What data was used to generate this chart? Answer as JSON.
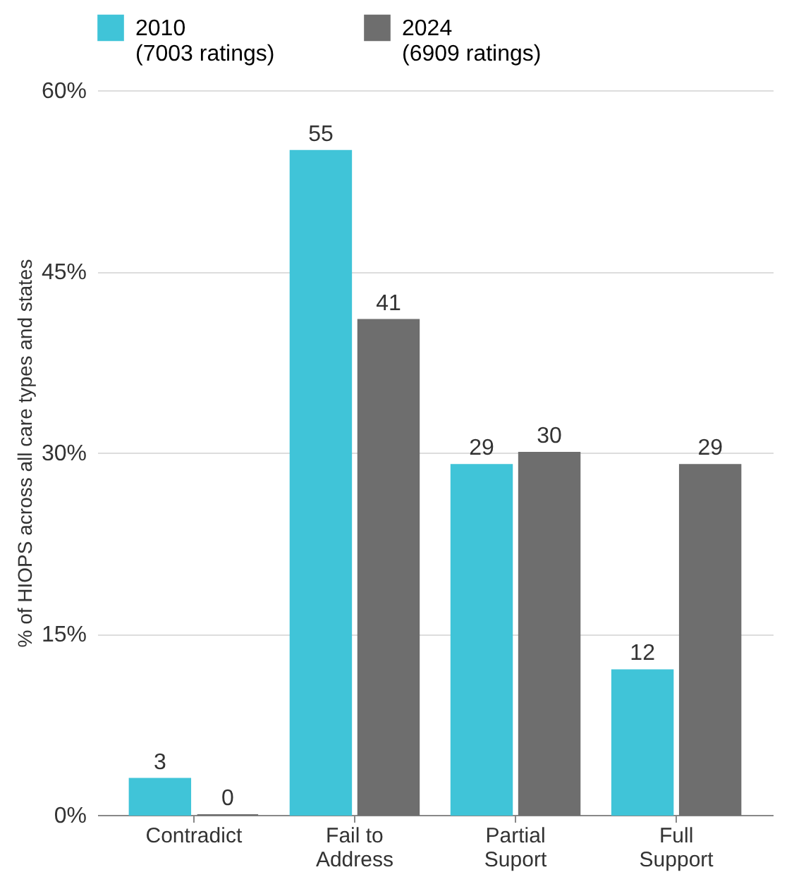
{
  "chart_data": {
    "type": "bar",
    "categories": [
      "Contradict",
      "Fail to\nAddress",
      "Partial\nSuport",
      "Full\nSupport"
    ],
    "series": [
      {
        "name": "2010\n(7003 ratings)",
        "color": "#40c4d8",
        "values": [
          3,
          55,
          29,
          12
        ]
      },
      {
        "name": "2024\n(6909 ratings)",
        "color": "#6e6e6e",
        "values": [
          0,
          41,
          30,
          29
        ]
      }
    ],
    "ylabel": "% of HIOPS across all care types and states",
    "ylim": [
      0,
      60
    ],
    "yticks": [
      {
        "value": 0,
        "label": "0%"
      },
      {
        "value": 15,
        "label": "15%"
      },
      {
        "value": 30,
        "label": "30%"
      },
      {
        "value": 45,
        "label": "45%"
      },
      {
        "value": 60,
        "label": "60%"
      }
    ],
    "grid": "y",
    "legend": "top",
    "data_labels": true
  }
}
